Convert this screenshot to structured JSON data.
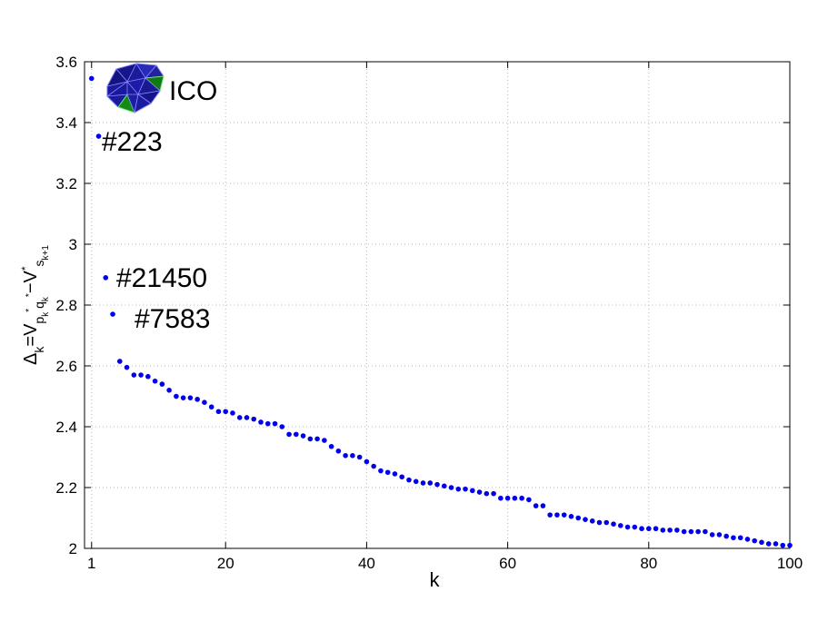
{
  "chart_data": {
    "type": "scatter",
    "xlabel": "k",
    "ylabel": {
      "base": "Δ",
      "k": "k",
      "eq": "=V",
      "p": "p",
      "q": "q",
      "star": "*",
      "minus": "−V",
      "s": "s",
      "k1": "k+1"
    },
    "xlim": [
      0,
      100
    ],
    "ylim": [
      2,
      3.6
    ],
    "xticks": [
      1,
      20,
      40,
      60,
      80,
      100
    ],
    "yticks": [
      2,
      2.2,
      2.4,
      2.6,
      2.8,
      3,
      3.2,
      3.4,
      3.6
    ],
    "ytick_labels": [
      "2",
      "2.2",
      "2.4",
      "2.6",
      "2.8",
      "3",
      "3.2",
      "3.4",
      "3.6"
    ],
    "grid": true,
    "marker_color": "#0000ee",
    "annotations": [
      {
        "text": "ICO",
        "x": 1,
        "y": 3.545
      },
      {
        "text": "#223",
        "x": 2,
        "y": 3.355
      },
      {
        "text": "#21450",
        "x": 3,
        "y": 2.89
      },
      {
        "text": "#7583",
        "x": 4,
        "y": 2.77
      }
    ],
    "inset_icon": "icosahedron-polyhedron-icon",
    "x": [
      1,
      2,
      3,
      4,
      5,
      6,
      7,
      8,
      9,
      10,
      11,
      12,
      13,
      14,
      15,
      16,
      17,
      18,
      19,
      20,
      21,
      22,
      23,
      24,
      25,
      26,
      27,
      28,
      29,
      30,
      31,
      32,
      33,
      34,
      35,
      36,
      37,
      38,
      39,
      40,
      41,
      42,
      43,
      44,
      45,
      46,
      47,
      48,
      49,
      50,
      51,
      52,
      53,
      54,
      55,
      56,
      57,
      58,
      59,
      60,
      61,
      62,
      63,
      64,
      65,
      66,
      67,
      68,
      69,
      70,
      71,
      72,
      73,
      74,
      75,
      76,
      77,
      78,
      79,
      80,
      81,
      82,
      83,
      84,
      85,
      86,
      87,
      88,
      89,
      90,
      91,
      92,
      93,
      94,
      95,
      96,
      97,
      98,
      99,
      100
    ],
    "y": [
      3.545,
      3.355,
      2.89,
      2.77,
      2.615,
      2.595,
      2.57,
      2.57,
      2.565,
      2.55,
      2.54,
      2.52,
      2.5,
      2.495,
      2.495,
      2.49,
      2.48,
      2.465,
      2.45,
      2.45,
      2.445,
      2.43,
      2.43,
      2.425,
      2.415,
      2.41,
      2.41,
      2.4,
      2.375,
      2.375,
      2.37,
      2.36,
      2.36,
      2.355,
      2.335,
      2.32,
      2.305,
      2.305,
      2.3,
      2.285,
      2.27,
      2.255,
      2.25,
      2.245,
      2.235,
      2.225,
      2.22,
      2.215,
      2.215,
      2.21,
      2.205,
      2.2,
      2.195,
      2.195,
      2.19,
      2.185,
      2.18,
      2.18,
      2.165,
      2.165,
      2.165,
      2.165,
      2.16,
      2.14,
      2.14,
      2.11,
      2.11,
      2.11,
      2.105,
      2.1,
      2.095,
      2.09,
      2.085,
      2.085,
      2.08,
      2.075,
      2.07,
      2.07,
      2.065,
      2.065,
      2.065,
      2.06,
      2.06,
      2.06,
      2.055,
      2.055,
      2.055,
      2.055,
      2.045,
      2.045,
      2.04,
      2.035,
      2.035,
      2.03,
      2.025,
      2.02,
      2.015,
      2.015,
      2.01,
      2.01
    ]
  }
}
